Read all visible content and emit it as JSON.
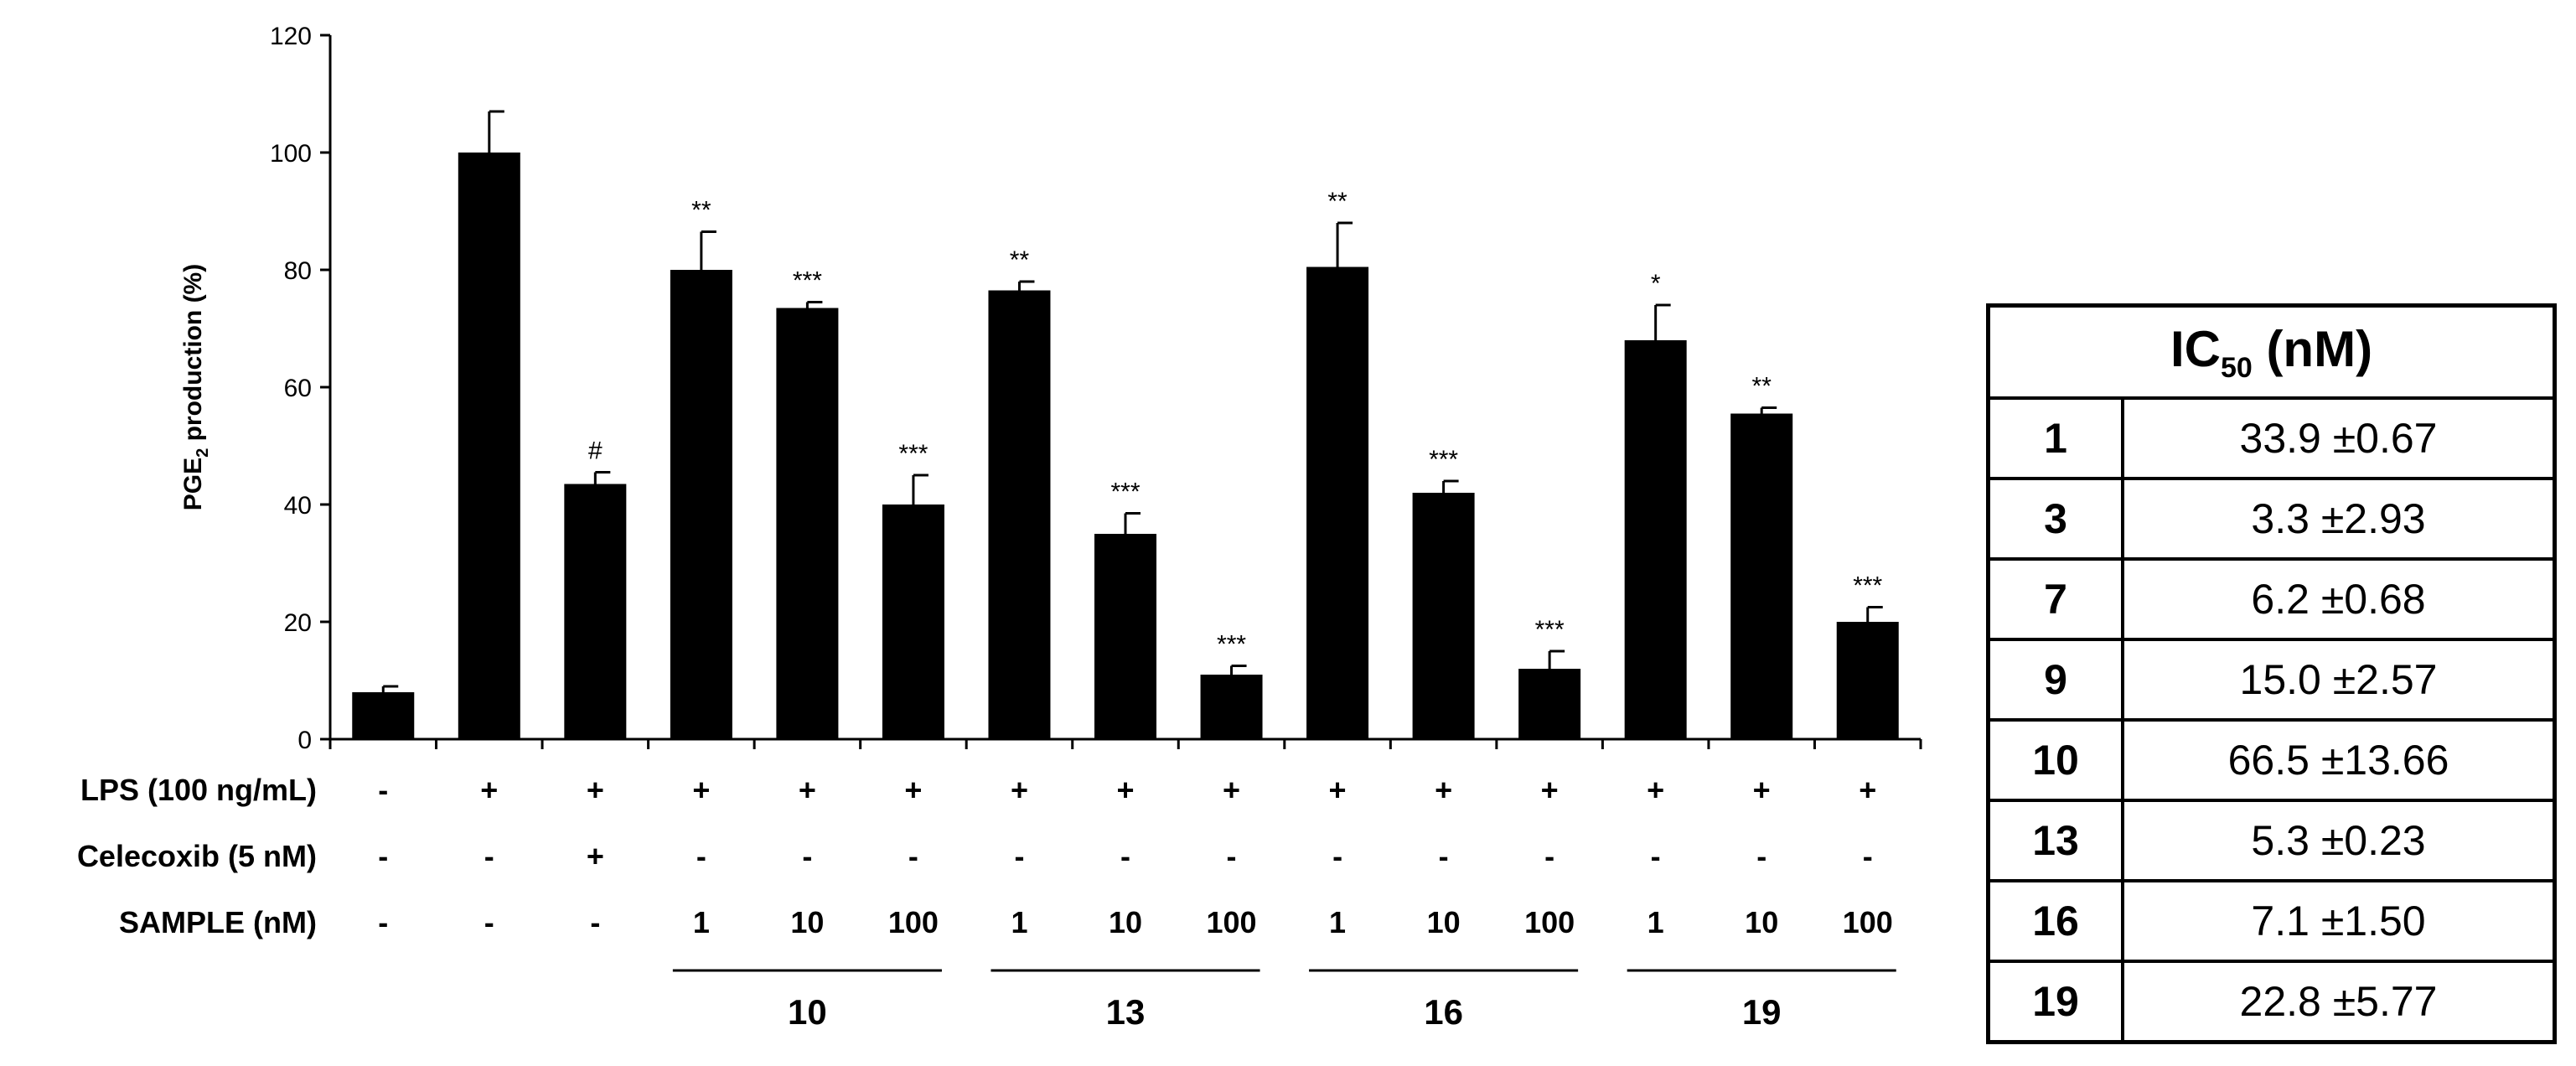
{
  "chart_data": {
    "type": "bar",
    "ylabel_main": "PGE",
    "ylabel_sub": "2",
    "ylabel_rest": " production (%)",
    "ylim": [
      0,
      120
    ],
    "yticks": [
      0,
      20,
      40,
      60,
      80,
      100,
      120
    ],
    "bar_color": "#000000",
    "bars": [
      {
        "value": 8,
        "error": 1,
        "sig": ""
      },
      {
        "value": 100,
        "error": 7,
        "sig": ""
      },
      {
        "value": 43.5,
        "error": 2,
        "sig": "#"
      },
      {
        "value": 80,
        "error": 6.5,
        "sig": "**"
      },
      {
        "value": 73.5,
        "error": 1,
        "sig": "***"
      },
      {
        "value": 40,
        "error": 5,
        "sig": "***"
      },
      {
        "value": 76.5,
        "error": 1.5,
        "sig": "**"
      },
      {
        "value": 35,
        "error": 3.5,
        "sig": "***"
      },
      {
        "value": 11,
        "error": 1.5,
        "sig": "***"
      },
      {
        "value": 80.5,
        "error": 7.5,
        "sig": "**"
      },
      {
        "value": 42,
        "error": 2,
        "sig": "***"
      },
      {
        "value": 12,
        "error": 3,
        "sig": "***"
      },
      {
        "value": 68,
        "error": 6,
        "sig": "*"
      },
      {
        "value": 55.5,
        "error": 1,
        "sig": "**"
      },
      {
        "value": 20,
        "error": 2.5,
        "sig": "***"
      }
    ],
    "condition_rows": [
      {
        "label": "LPS (100 ng/mL)",
        "values": [
          "-",
          "+",
          "+",
          "+",
          "+",
          "+",
          "+",
          "+",
          "+",
          "+",
          "+",
          "+",
          "+",
          "+",
          "+"
        ]
      },
      {
        "label": "Celecoxib (5 nM)",
        "values": [
          "-",
          "-",
          "+",
          "-",
          "-",
          "-",
          "-",
          "-",
          "-",
          "-",
          "-",
          "-",
          "-",
          "-",
          "-"
        ]
      },
      {
        "label": "SAMPLE (nM)",
        "values": [
          "-",
          "-",
          "-",
          "1",
          "10",
          "100",
          "1",
          "10",
          "100",
          "1",
          "10",
          "100",
          "1",
          "10",
          "100"
        ]
      }
    ],
    "groups": [
      {
        "label": "10",
        "start": 3,
        "end": 5
      },
      {
        "label": "13",
        "start": 6,
        "end": 8
      },
      {
        "label": "16",
        "start": 9,
        "end": 11
      },
      {
        "label": "19",
        "start": 12,
        "end": 14
      }
    ]
  },
  "ic50_table": {
    "header_main": "IC",
    "header_sub": "50",
    "header_rest": " (nM)",
    "rows": [
      {
        "compound": "1",
        "value": "33.9 ±0.67"
      },
      {
        "compound": "3",
        "value": "3.3 ±2.93"
      },
      {
        "compound": "7",
        "value": "6.2 ±0.68"
      },
      {
        "compound": "9",
        "value": "15.0 ±2.57"
      },
      {
        "compound": "10",
        "value": "66.5 ±13.66"
      },
      {
        "compound": "13",
        "value": "5.3 ±0.23"
      },
      {
        "compound": "16",
        "value": "7.1 ±1.50"
      },
      {
        "compound": "19",
        "value": "22.8 ±5.77"
      }
    ]
  }
}
